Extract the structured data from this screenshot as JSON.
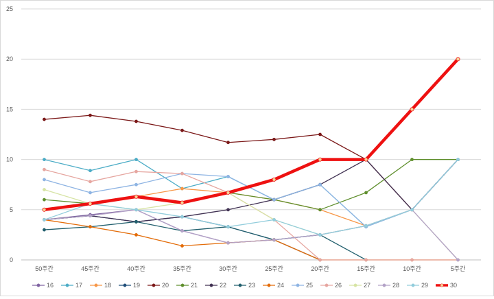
{
  "chart_data": {
    "type": "line",
    "title": "",
    "xlabel": "",
    "ylabel": "",
    "ylim": [
      0,
      25
    ],
    "yticks": [
      0,
      5,
      10,
      15,
      20,
      25
    ],
    "grid": "horizontal",
    "legend_position": "bottom",
    "categories": [
      "50주간",
      "45주간",
      "40주간",
      "35주간",
      "30주간",
      "25주간",
      "20주간",
      "15주간",
      "10주간",
      "5주간"
    ],
    "series": [
      {
        "name": "16",
        "color": "#8064a2",
        "width": 1.3,
        "values": [
          4,
          4.5,
          5,
          2.9,
          1.7,
          2,
          2.5,
          3.4,
          5,
          10
        ]
      },
      {
        "name": "17",
        "color": "#4bacc6",
        "width": 1.3,
        "values": [
          10,
          8.9,
          10,
          7.1,
          8.3,
          6,
          7.5,
          3.3,
          5,
          10
        ]
      },
      {
        "name": "18",
        "color": "#f79646",
        "width": 1.3,
        "values": [
          5,
          5.6,
          6.3,
          7.1,
          6.7,
          6,
          5,
          3.4,
          null,
          null
        ]
      },
      {
        "name": "19",
        "color": "#1f4e79",
        "width": 1.3,
        "values": [
          4,
          4.4,
          3.8,
          4.3,
          3.3,
          2,
          0,
          null,
          null,
          null
        ]
      },
      {
        "name": "20",
        "color": "#7b1818",
        "width": 1.3,
        "values": [
          14,
          14.4,
          13.8,
          12.9,
          11.7,
          12,
          12.5,
          10,
          5,
          10
        ]
      },
      {
        "name": "21",
        "color": "#5f8f2d",
        "width": 1.3,
        "values": [
          6,
          5.6,
          6.3,
          5.7,
          6.7,
          6,
          5,
          6.7,
          10,
          10
        ]
      },
      {
        "name": "22",
        "color": "#403152",
        "width": 1.3,
        "values": [
          4,
          4.4,
          3.8,
          4.3,
          5,
          6,
          7.5,
          10,
          5,
          10
        ]
      },
      {
        "name": "23",
        "color": "#215f6d",
        "width": 1.3,
        "values": [
          3,
          3.3,
          3.8,
          2.9,
          3.3,
          2,
          2.5,
          0,
          null,
          null
        ]
      },
      {
        "name": "24",
        "color": "#e36c09",
        "width": 1.3,
        "values": [
          4,
          3.3,
          2.5,
          1.4,
          1.7,
          2,
          0,
          0,
          0,
          0
        ]
      },
      {
        "name": "25",
        "color": "#8eb4e3",
        "width": 1.3,
        "values": [
          8,
          6.7,
          7.5,
          8.6,
          8.3,
          6,
          7.5,
          3.3,
          5,
          10
        ]
      },
      {
        "name": "26",
        "color": "#e6a6a0",
        "width": 1.3,
        "values": [
          9,
          7.8,
          8.8,
          8.6,
          6.7,
          4,
          0,
          0,
          0,
          0
        ]
      },
      {
        "name": "27",
        "color": "#d7e4a5",
        "width": 1.3,
        "values": [
          7,
          5.6,
          5,
          5.7,
          6.7,
          4,
          2.5,
          3.4,
          5,
          0
        ]
      },
      {
        "name": "28",
        "color": "#b3a2c7",
        "width": 1.3,
        "values": [
          4,
          4.4,
          5,
          2.9,
          1.7,
          2,
          2.5,
          3.4,
          5,
          0
        ]
      },
      {
        "name": "29",
        "color": "#92cddc",
        "width": 1.3,
        "values": [
          4,
          5.6,
          5,
          4.3,
          3.3,
          4,
          2.5,
          3.4,
          5,
          10
        ]
      },
      {
        "name": "30",
        "color": "#ee1111",
        "width": 4.5,
        "values": [
          5,
          5.6,
          6.3,
          5.7,
          6.7,
          8,
          10,
          10,
          15,
          20
        ]
      }
    ]
  }
}
